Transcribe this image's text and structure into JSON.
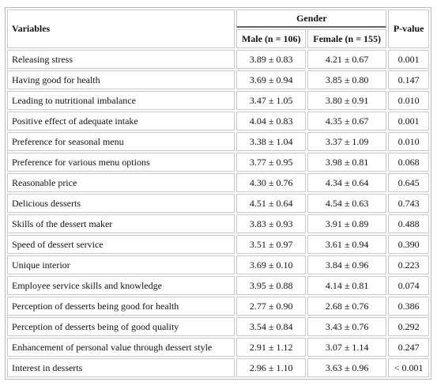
{
  "header": {
    "variables": "Variables",
    "gender": "Gender",
    "male": "Male (n = 106)",
    "female": "Female (n = 155)",
    "p_value": "P-value"
  },
  "table": {
    "rows": [
      [
        "Releasing stress",
        "3.89 ± 0.83",
        "4.21 ± 0.67",
        "0.001"
      ],
      [
        "Having good for health",
        "3.69 ± 0.94",
        "3.85 ± 0.80",
        "0.147"
      ],
      [
        "Leading to nutritional imbalance",
        "3.47 ± 1.05",
        "3.80 ± 0.91",
        "0.010"
      ],
      [
        "Positive effect of adequate intake",
        "4.04 ± 0.83",
        "4.35 ± 0.67",
        "0.001"
      ],
      [
        "Preference for seasonal menu",
        "3.38 ± 1.04",
        "3.37 ± 1.09",
        "0.010"
      ],
      [
        "Preference for various menu options",
        "3.77 ± 0.95",
        "3.98 ± 0.81",
        "0.068"
      ],
      [
        "Reasonable price",
        "4.30 ± 0.76",
        "4.34 ± 0.64",
        "0.645"
      ],
      [
        "Delicious desserts",
        "4.51 ± 0.64",
        "4.54 ± 0.63",
        "0.743"
      ],
      [
        "Skills of the dessert maker",
        "3.83 ± 0.93",
        "3.91 ± 0.89",
        "0.488"
      ],
      [
        "Speed of dessert service",
        "3.51 ± 0.97",
        "3.61 ± 0.94",
        "0.390"
      ],
      [
        "Unique interior",
        "3.69 ± 0.10",
        "3.84 ± 0.96",
        "0.223"
      ],
      [
        "Employee service skills and knowledge",
        "3.95 ± 0.88",
        "4.14 ± 0.81",
        "0.074"
      ],
      [
        "Perception of desserts being good for health",
        "2.77 ± 0.90",
        "2.68 ± 0.76",
        "0.386"
      ],
      [
        "Perception of desserts being of good quality",
        "3.54 ± 0.84",
        "3.43 ± 0.76",
        "0.292"
      ],
      [
        "Enhancement of personal value through dessert style",
        "2.91 ± 1.12",
        "3.07 ± 1.14",
        "0.247"
      ],
      [
        "Interest in desserts",
        "2.96 ± 1.10",
        "3.63 ± 0.96",
        "< 0.001"
      ]
    ]
  }
}
